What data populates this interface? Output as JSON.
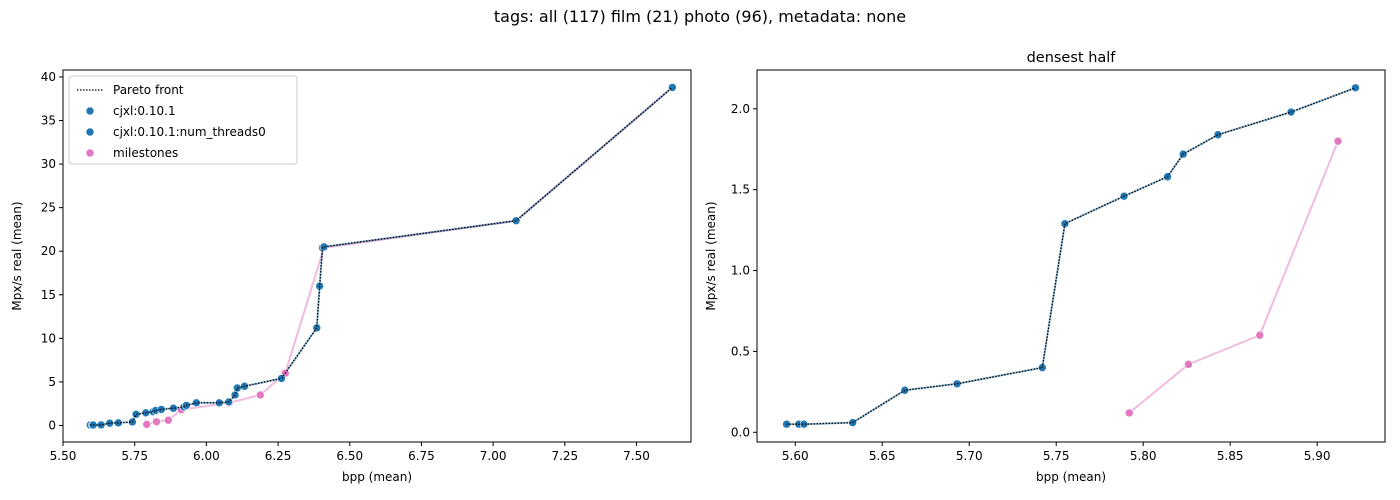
{
  "suptitle": "tags: all (117) film (21) photo (96), metadata: none",
  "colors": {
    "cjxl": "#1f77b4",
    "milestones": "#e377c2",
    "front": "#000000",
    "axis": "#000000"
  },
  "chart_data": [
    {
      "type": "scatter",
      "title": "",
      "xlabel": "bpp (mean)",
      "ylabel": "Mpx/s real (mean)",
      "xlim": [
        5.5,
        7.69
      ],
      "ylim": [
        -1.9,
        40.8
      ],
      "xticks": [
        5.5,
        5.75,
        6.0,
        6.25,
        6.5,
        6.75,
        7.0,
        7.25,
        7.5
      ],
      "xtick_labels": [
        "5.50",
        "5.75",
        "6.00",
        "6.25",
        "6.50",
        "6.75",
        "7.00",
        "7.25",
        "7.50"
      ],
      "yticks": [
        0,
        5,
        10,
        15,
        20,
        25,
        30,
        35,
        40
      ],
      "ytick_labels": [
        "0",
        "5",
        "10",
        "15",
        "20",
        "25",
        "30",
        "35",
        "40"
      ],
      "legend": {
        "placement": "top-left",
        "entries": [
          "Pareto front",
          "cjxl:0.10.1",
          "cjxl:0.10.1:num_threads0",
          "milestones"
        ]
      },
      "series": [
        {
          "name": "cjxl:0.10.1",
          "kind": "scatter-line",
          "x": [
            5.595,
            5.603,
            5.605,
            5.633,
            5.663,
            5.693,
            5.742,
            5.755,
            5.789,
            5.814,
            5.823,
            5.843,
            5.885,
            5.922,
            5.93,
            5.965,
            6.045,
            6.078,
            6.1,
            6.108,
            6.133,
            6.262,
            6.385,
            6.395,
            6.405,
            6.41,
            7.08,
            7.625
          ],
          "y": [
            0.05,
            0.05,
            0.05,
            0.06,
            0.26,
            0.3,
            0.4,
            1.28,
            1.45,
            1.58,
            1.72,
            1.84,
            1.98,
            2.13,
            2.3,
            2.6,
            2.6,
            2.7,
            3.5,
            4.3,
            4.5,
            5.4,
            11.2,
            16.0,
            20.4,
            20.5,
            23.5,
            38.8
          ]
        },
        {
          "name": "milestones",
          "kind": "scatter-line",
          "x": [
            5.792,
            5.826,
            5.867,
            5.912,
            6.08,
            6.188,
            6.275,
            6.41,
            7.08,
            7.625
          ],
          "y": [
            0.12,
            0.42,
            0.6,
            1.8,
            2.6,
            3.5,
            6.0,
            20.4,
            23.5,
            38.8
          ]
        },
        {
          "name": "Pareto front",
          "kind": "dotted-line",
          "x": [
            5.595,
            5.603,
            5.605,
            5.633,
            5.663,
            5.693,
            5.742,
            5.755,
            5.789,
            5.814,
            5.823,
            5.843,
            5.885,
            5.922,
            5.93,
            5.965,
            6.045,
            6.078,
            6.1,
            6.108,
            6.133,
            6.262,
            6.385,
            6.395,
            6.405,
            6.41,
            7.08,
            7.625
          ],
          "y": [
            0.05,
            0.05,
            0.05,
            0.06,
            0.26,
            0.3,
            0.4,
            1.28,
            1.45,
            1.58,
            1.72,
            1.84,
            1.98,
            2.13,
            2.3,
            2.6,
            2.6,
            2.7,
            3.5,
            4.3,
            4.5,
            5.4,
            11.2,
            16.0,
            20.4,
            20.5,
            23.5,
            38.8
          ]
        }
      ]
    },
    {
      "type": "scatter",
      "title": "densest half",
      "xlabel": "bpp (mean)",
      "ylabel": "Mpx/s real (mean)",
      "xlim": [
        5.578,
        5.939
      ],
      "ylim": [
        -0.06,
        2.24
      ],
      "xticks": [
        5.6,
        5.65,
        5.7,
        5.75,
        5.8,
        5.85,
        5.9
      ],
      "xtick_labels": [
        "5.60",
        "5.65",
        "5.70",
        "5.75",
        "5.80",
        "5.85",
        "5.90"
      ],
      "yticks": [
        0.0,
        0.5,
        1.0,
        1.5,
        2.0
      ],
      "ytick_labels": [
        "0.0",
        "0.5",
        "1.0",
        "1.5",
        "2.0"
      ],
      "series": [
        {
          "name": "cjxl:0.10.1",
          "kind": "scatter-line",
          "x": [
            5.595,
            5.602,
            5.605,
            5.633,
            5.663,
            5.693,
            5.742,
            5.755,
            5.789,
            5.814,
            5.823,
            5.843,
            5.885,
            5.922
          ],
          "y": [
            0.05,
            0.05,
            0.05,
            0.06,
            0.26,
            0.3,
            0.4,
            1.29,
            1.46,
            1.58,
            1.72,
            1.84,
            1.98,
            2.13
          ]
        },
        {
          "name": "milestones",
          "kind": "scatter-line",
          "x": [
            5.792,
            5.826,
            5.867,
            5.912
          ],
          "y": [
            0.12,
            0.42,
            0.6,
            1.8
          ]
        },
        {
          "name": "Pareto front",
          "kind": "dotted-line",
          "x": [
            5.595,
            5.602,
            5.605,
            5.633,
            5.663,
            5.693,
            5.742,
            5.755,
            5.789,
            5.814,
            5.823,
            5.843,
            5.885,
            5.922
          ],
          "y": [
            0.05,
            0.05,
            0.05,
            0.06,
            0.26,
            0.3,
            0.4,
            1.29,
            1.46,
            1.58,
            1.72,
            1.84,
            1.98,
            2.13
          ]
        }
      ]
    }
  ]
}
